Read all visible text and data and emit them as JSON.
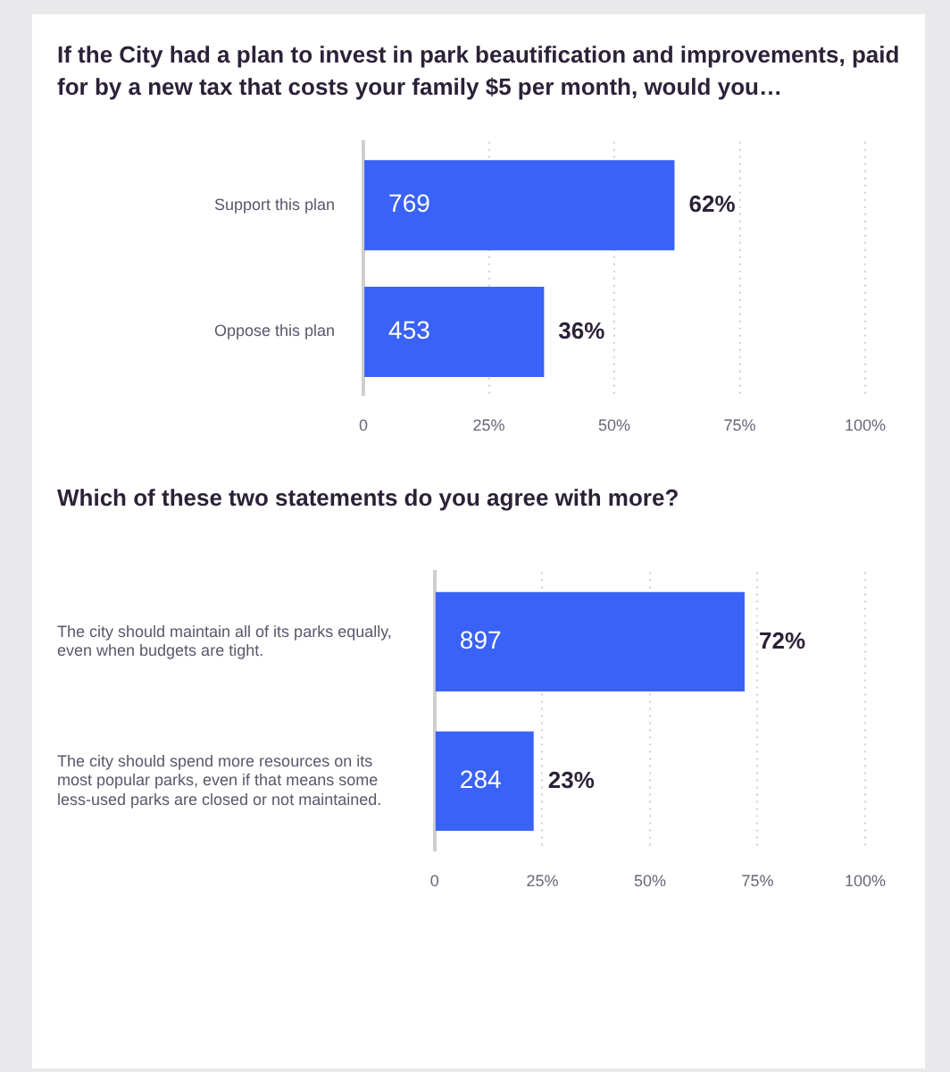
{
  "chart_data": [
    {
      "type": "bar",
      "orientation": "horizontal",
      "title": "If the City had a plan to invest in park beautification and improvements, paid for by a new tax that costs your family $5 per month, would you…",
      "categories": [
        "Support this plan",
        "Oppose this plan"
      ],
      "values": [
        62,
        36
      ],
      "value_labels": [
        "62%",
        "36%"
      ],
      "color": "#3a62f6",
      "xlim": [
        0,
        100
      ],
      "xticks": [
        0,
        {
          "value": 25,
          "label": "25%"
        },
        {
          "value": 50,
          "label": "50%"
        },
        {
          "value": 75,
          "label": "75%"
        },
        {
          "value": 100,
          "label": "100%"
        }
      ],
      "grid": "x",
      "annotations": [
        {
          "text": "769",
          "y": "Support this plan"
        },
        {
          "text": "453",
          "y": "Oppose this plan"
        }
      ]
    },
    {
      "type": "bar",
      "orientation": "horizontal",
      "title": "Which of these two statements do you agree with more?",
      "categories": [
        "The city should maintain all of its parks equally, even when budgets are tight.",
        "The city should spend more resources on its most popular parks, even if that means some less-used parks are closed or not maintained."
      ],
      "values": [
        72,
        23
      ],
      "value_labels": [
        "72%",
        "23%"
      ],
      "color": "#3a62f6",
      "xlim": [
        0,
        100
      ],
      "xticks": [
        0,
        {
          "value": 25,
          "label": "25%"
        },
        {
          "value": 50,
          "label": "50%"
        },
        {
          "value": 75,
          "label": "75%"
        },
        {
          "value": 100,
          "label": "100%"
        }
      ],
      "grid": "x",
      "annotations": [
        {
          "text": "897",
          "y": "The city should maintain all of its parks equally, even when budgets are tight."
        },
        {
          "text": "284",
          "y": "The city should spend more resources on its most popular parks, even if that means some less-used parks are closed or not maintained."
        }
      ]
    }
  ]
}
